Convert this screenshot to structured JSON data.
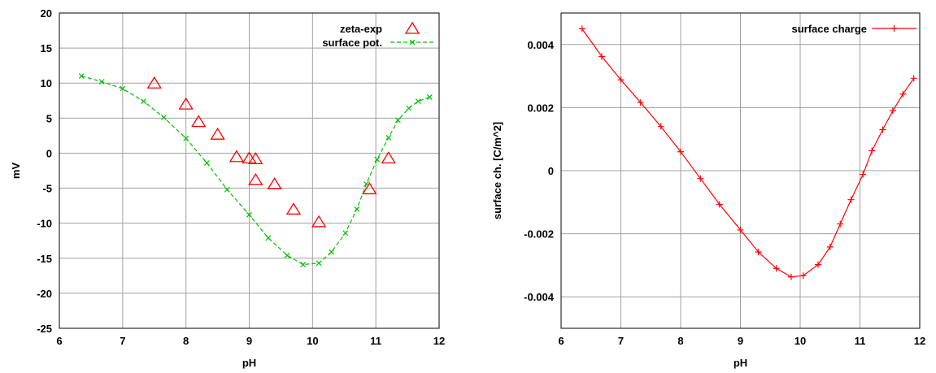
{
  "colors": {
    "zeta": "#ff0000",
    "surface_pot": "#00c000",
    "surface_charge": "#ff0000",
    "grid": "#a0a0a0"
  },
  "chart_data": [
    {
      "type": "scatter+line",
      "title": "",
      "xlabel": "pH",
      "ylabel": "mV",
      "xlim": [
        6,
        12
      ],
      "ylim": [
        -25,
        20
      ],
      "xticks": [
        "6",
        "7",
        "8",
        "9",
        "10",
        "11",
        "12"
      ],
      "yticks": [
        "20",
        "15",
        "10",
        "5",
        "0",
        "-5",
        "-10",
        "-15",
        "-20",
        "-25"
      ],
      "grid": true,
      "legend_position": "top-right",
      "series": [
        {
          "name": "zeta-exp",
          "style": "triangle-markers",
          "color": "#ff0000",
          "x": [
            7.5,
            8.0,
            8.2,
            8.5,
            8.8,
            9.0,
            9.1,
            9.1,
            9.4,
            9.7,
            10.1,
            10.9,
            11.2
          ],
          "y": [
            10.0,
            7.0,
            4.5,
            2.7,
            -0.5,
            -0.7,
            -0.8,
            -3.8,
            -4.4,
            -8.0,
            -9.8,
            -5.1,
            -0.7
          ]
        },
        {
          "name": "surface pot.",
          "style": "dashed-line-x-markers",
          "color": "#00c000",
          "x": [
            6.35,
            6.67,
            7.0,
            7.33,
            7.65,
            8.0,
            8.33,
            8.65,
            9.0,
            9.3,
            9.6,
            9.85,
            10.1,
            10.3,
            10.52,
            10.7,
            10.85,
            11.02,
            11.2,
            11.35,
            11.52,
            11.67,
            11.85
          ],
          "y": [
            11.0,
            10.2,
            9.2,
            7.4,
            5.1,
            2.1,
            -1.4,
            -5.2,
            -8.8,
            -12.1,
            -14.6,
            -15.9,
            -15.7,
            -14.1,
            -11.4,
            -8.0,
            -4.4,
            -0.9,
            2.2,
            4.7,
            6.4,
            7.4,
            8.0
          ]
        }
      ]
    },
    {
      "type": "line",
      "title": "",
      "xlabel": "pH",
      "ylabel": "surface ch. [C/m^2]",
      "xlim": [
        6,
        12
      ],
      "ylim": [
        -0.005,
        0.005
      ],
      "xticks": [
        "6",
        "7",
        "8",
        "9",
        "10",
        "11",
        "12"
      ],
      "yticks": [
        "0.004",
        "0.002",
        "0",
        "-0.002",
        "-0.004"
      ],
      "grid": true,
      "legend_position": "top-right",
      "series": [
        {
          "name": "surface charge",
          "style": "solid-line-plus-markers",
          "color": "#ff0000",
          "x": [
            6.35,
            6.68,
            7.0,
            7.33,
            7.67,
            8.0,
            8.33,
            8.65,
            9.0,
            9.3,
            9.6,
            9.85,
            10.05,
            10.3,
            10.5,
            10.67,
            10.85,
            11.05,
            11.2,
            11.38,
            11.55,
            11.72,
            11.9
          ],
          "y": [
            0.0045,
            0.00362,
            0.00288,
            0.00216,
            0.0014,
            0.0006,
            -0.00025,
            -0.00107,
            -0.00188,
            -0.00258,
            -0.0031,
            -0.00337,
            -0.00333,
            -0.00298,
            -0.00242,
            -0.00169,
            -0.00092,
            -0.00012,
            0.00063,
            0.0013,
            0.0019,
            0.00243,
            0.00293
          ]
        }
      ]
    }
  ]
}
